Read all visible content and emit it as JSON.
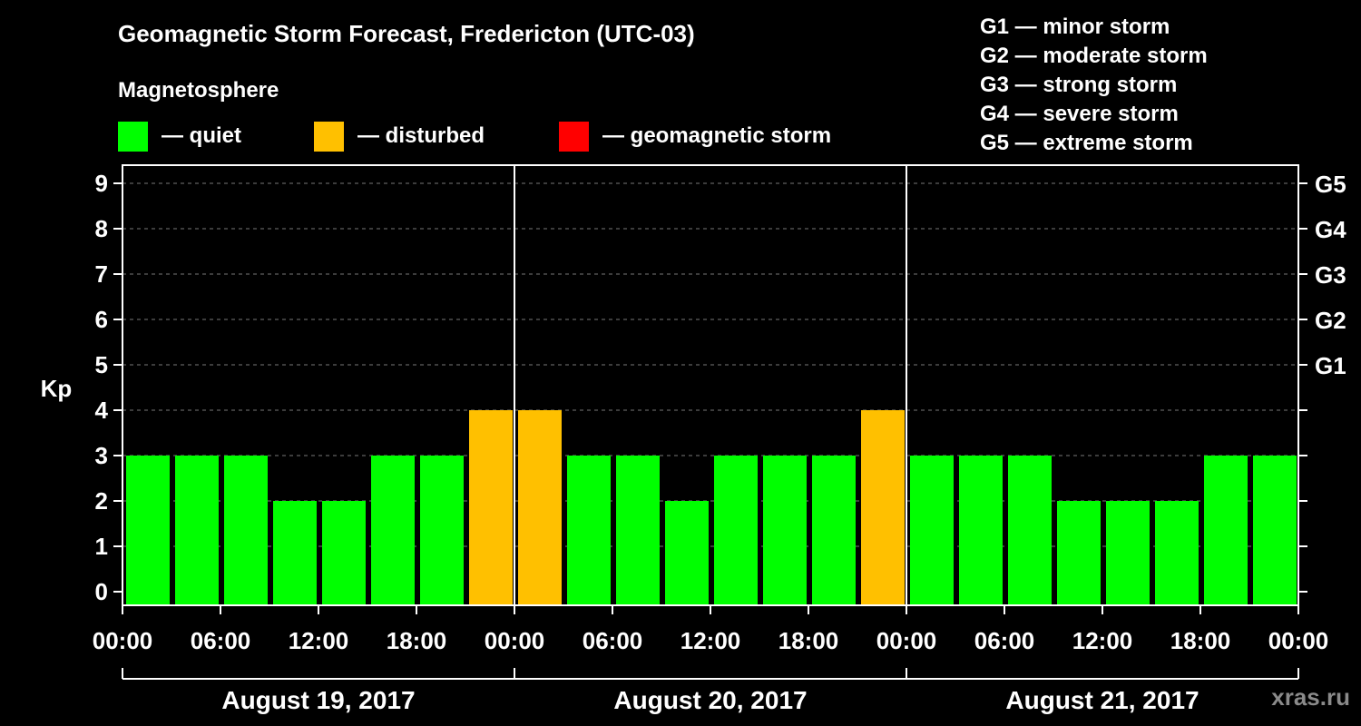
{
  "title": "Geomagnetic Storm Forecast, Fredericton (UTC-03)",
  "magnetosphere_label": "Magnetosphere",
  "legend": [
    {
      "label": "— quiet",
      "color": "#00ff00"
    },
    {
      "label": "— disturbed",
      "color": "#ffc000"
    },
    {
      "label": "— geomagnetic storm",
      "color": "#ff0000"
    }
  ],
  "g_legend": [
    "G1 — minor storm",
    "G2 — moderate storm",
    "G3 — strong storm",
    "G4 — severe storm",
    "G5 — extreme storm"
  ],
  "watermark": "xras.ru",
  "chart_data": {
    "type": "bar",
    "title": "Geomagnetic Storm Forecast, Fredericton (UTC-03)",
    "ylabel": "Kp",
    "ylim": [
      0,
      9
    ],
    "yticks": [
      "0",
      "1",
      "2",
      "3",
      "4",
      "5",
      "6",
      "7",
      "8",
      "9"
    ],
    "right_ticks": [
      {
        "value": 5,
        "label": "G1"
      },
      {
        "value": 6,
        "label": "G2"
      },
      {
        "value": 7,
        "label": "G3"
      },
      {
        "value": 8,
        "label": "G4"
      },
      {
        "value": 9,
        "label": "G5"
      }
    ],
    "xtick_labels": [
      "00:00",
      "06:00",
      "12:00",
      "18:00",
      "00:00",
      "06:00",
      "12:00",
      "18:00",
      "00:00",
      "06:00",
      "12:00",
      "18:00",
      "00:00"
    ],
    "days": [
      "August 19, 2017",
      "August 20, 2017",
      "August 21, 2017"
    ],
    "interval_hours": 3,
    "values": [
      3,
      3,
      3,
      2,
      2,
      3,
      3,
      4,
      4,
      3,
      3,
      2,
      3,
      3,
      3,
      4,
      3,
      3,
      3,
      2,
      2,
      2,
      3,
      3
    ],
    "colors": {
      "quiet": "#00ff00",
      "disturbed": "#ffc000",
      "storm": "#ff0000"
    }
  }
}
